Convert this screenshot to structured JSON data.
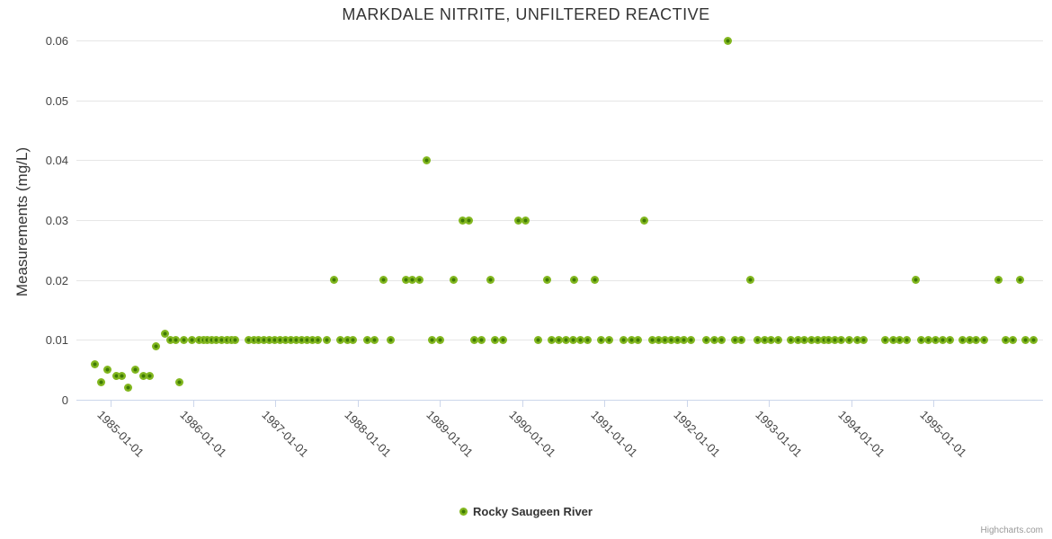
{
  "title": "MARKDALE NITRITE, UNFILTERED REACTIVE",
  "y_axis": {
    "title": "Measurements (mg/L)",
    "ticks": [
      0,
      0.01,
      0.02,
      0.03,
      0.04,
      0.05,
      0.06
    ]
  },
  "x_axis": {
    "ticks": [
      "1985-01-01",
      "1986-01-01",
      "1987-01-01",
      "1988-01-01",
      "1989-01-01",
      "1990-01-01",
      "1991-01-01",
      "1992-01-01",
      "1993-01-01",
      "1994-01-01",
      "1995-01-01"
    ]
  },
  "legend": {
    "label": "Rocky Saugeen River"
  },
  "credits": "Highcharts.com",
  "colors": {
    "marker_fill": "#82b71f",
    "marker_center": "#3f7a05",
    "grid": "#e6e6e6",
    "axis": "#ccd6eb",
    "title_text": "#333333",
    "label_text": "#444444",
    "credits_text": "#999999"
  },
  "chart_data": {
    "type": "scatter",
    "title": "MARKDALE NITRITE, UNFILTERED REACTIVE",
    "xlabel": "",
    "ylabel": "Measurements (mg/L)",
    "ylim": [
      0,
      0.06
    ],
    "x_range": [
      "1984-08-01",
      "1996-05-01"
    ],
    "grid": true,
    "legend_position": "bottom",
    "series": [
      {
        "name": "Rocky Saugeen River",
        "color": "#82b71f",
        "points": [
          [
            "1984-10-20",
            0.006
          ],
          [
            "1984-11-19",
            0.003
          ],
          [
            "1984-12-16",
            0.005
          ],
          [
            "1985-01-27",
            0.004
          ],
          [
            "1985-02-20",
            0.004
          ],
          [
            "1985-03-19",
            0.002
          ],
          [
            "1985-04-21",
            0.005
          ],
          [
            "1985-05-27",
            0.004
          ],
          [
            "1985-06-22",
            0.004
          ],
          [
            "1985-07-20",
            0.009
          ],
          [
            "1985-08-29",
            0.011
          ],
          [
            "1985-09-24",
            0.01
          ],
          [
            "1985-10-16",
            0.01
          ],
          [
            "1985-11-03",
            0.003
          ],
          [
            "1985-11-21",
            0.01
          ],
          [
            "1985-12-27",
            0.01
          ],
          [
            "1986-01-27",
            0.01
          ],
          [
            "1986-02-16",
            0.01
          ],
          [
            "1986-03-04",
            0.01
          ],
          [
            "1986-03-24",
            0.01
          ],
          [
            "1986-04-13",
            0.01
          ],
          [
            "1986-05-07",
            0.01
          ],
          [
            "1986-05-31",
            0.01
          ],
          [
            "1986-06-20",
            0.01
          ],
          [
            "1986-07-06",
            0.01
          ],
          [
            "1986-09-04",
            0.01
          ],
          [
            "1986-09-28",
            0.01
          ],
          [
            "1986-10-18",
            0.01
          ],
          [
            "1986-11-11",
            0.01
          ],
          [
            "1986-12-05",
            0.01
          ],
          [
            "1986-12-29",
            0.01
          ],
          [
            "1987-01-22",
            0.01
          ],
          [
            "1987-02-15",
            0.01
          ],
          [
            "1987-03-11",
            0.01
          ],
          [
            "1987-04-04",
            0.01
          ],
          [
            "1987-04-28",
            0.01
          ],
          [
            "1987-05-22",
            0.01
          ],
          [
            "1987-06-15",
            0.01
          ],
          [
            "1987-07-09",
            0.01
          ],
          [
            "1987-08-18",
            0.01
          ],
          [
            "1987-09-19",
            0.02
          ],
          [
            "1987-10-17",
            0.01
          ],
          [
            "1987-11-18",
            0.01
          ],
          [
            "1987-12-12",
            0.01
          ],
          [
            "1988-02-14",
            0.01
          ],
          [
            "1988-03-17",
            0.01
          ],
          [
            "1988-04-26",
            0.02
          ],
          [
            "1988-05-28",
            0.01
          ],
          [
            "1988-08-01",
            0.02
          ],
          [
            "1988-08-29",
            0.02
          ],
          [
            "1988-10-01",
            0.02
          ],
          [
            "1988-11-01",
            0.04
          ],
          [
            "1988-11-27",
            0.01
          ],
          [
            "1989-01-02",
            0.01
          ],
          [
            "1989-03-04",
            0.02
          ],
          [
            "1989-04-10",
            0.03
          ],
          [
            "1989-05-08",
            0.03
          ],
          [
            "1989-06-03",
            0.01
          ],
          [
            "1989-07-05",
            0.01
          ],
          [
            "1989-08-12",
            0.02
          ],
          [
            "1989-09-01",
            0.01
          ],
          [
            "1989-10-07",
            0.01
          ],
          [
            "1989-12-14",
            0.03
          ],
          [
            "1990-01-15",
            0.03
          ],
          [
            "1990-03-12",
            0.01
          ],
          [
            "1990-04-21",
            0.02
          ],
          [
            "1990-05-11",
            0.01
          ],
          [
            "1990-06-12",
            0.01
          ],
          [
            "1990-07-14",
            0.01
          ],
          [
            "1990-08-15",
            0.01
          ],
          [
            "1990-08-19",
            0.02
          ],
          [
            "1990-09-16",
            0.01
          ],
          [
            "1990-10-18",
            0.01
          ],
          [
            "1990-11-18",
            0.02
          ],
          [
            "1990-12-17",
            0.01
          ],
          [
            "1991-01-22",
            0.01
          ],
          [
            "1991-03-27",
            0.01
          ],
          [
            "1991-05-02",
            0.01
          ],
          [
            "1991-05-30",
            0.01
          ],
          [
            "1991-06-26",
            0.03
          ],
          [
            "1991-08-02",
            0.01
          ],
          [
            "1991-08-30",
            0.01
          ],
          [
            "1991-09-27",
            0.01
          ],
          [
            "1991-10-25",
            0.01
          ],
          [
            "1991-11-22",
            0.01
          ],
          [
            "1991-12-20",
            0.01
          ],
          [
            "1992-01-21",
            0.01
          ],
          [
            "1992-03-29",
            0.01
          ],
          [
            "1992-05-04",
            0.01
          ],
          [
            "1992-06-05",
            0.01
          ],
          [
            "1992-07-02",
            0.06
          ],
          [
            "1992-08-04",
            0.01
          ],
          [
            "1992-09-01",
            0.01
          ],
          [
            "1992-10-11",
            0.02
          ],
          [
            "1992-11-12",
            0.01
          ],
          [
            "1992-12-14",
            0.01
          ],
          [
            "1993-01-11",
            0.01
          ],
          [
            "1993-02-12",
            0.01
          ],
          [
            "1993-04-08",
            0.01
          ],
          [
            "1993-05-10",
            0.01
          ],
          [
            "1993-06-07",
            0.01
          ],
          [
            "1993-07-09",
            0.01
          ],
          [
            "1993-08-06",
            0.01
          ],
          [
            "1993-09-03",
            0.01
          ],
          [
            "1993-09-23",
            0.01
          ],
          [
            "1993-10-21",
            0.01
          ],
          [
            "1993-11-18",
            0.01
          ],
          [
            "1993-12-24",
            0.01
          ],
          [
            "1994-01-26",
            0.01
          ],
          [
            "1994-02-23",
            0.01
          ],
          [
            "1994-05-30",
            0.01
          ],
          [
            "1994-07-05",
            0.01
          ],
          [
            "1994-08-02",
            0.01
          ],
          [
            "1994-09-03",
            0.01
          ],
          [
            "1994-10-13",
            0.02
          ],
          [
            "1994-11-06",
            0.01
          ],
          [
            "1994-12-08",
            0.01
          ],
          [
            "1995-01-09",
            0.01
          ],
          [
            "1995-02-10",
            0.01
          ],
          [
            "1995-03-14",
            0.01
          ],
          [
            "1995-05-09",
            0.01
          ],
          [
            "1995-06-10",
            0.01
          ],
          [
            "1995-07-08",
            0.01
          ],
          [
            "1995-08-13",
            0.01
          ],
          [
            "1995-10-16",
            0.02
          ],
          [
            "1995-11-17",
            0.01
          ],
          [
            "1995-12-19",
            0.01
          ],
          [
            "1996-01-20",
            0.02
          ],
          [
            "1996-02-13",
            0.01
          ],
          [
            "1996-03-20",
            0.01
          ]
        ]
      }
    ]
  }
}
